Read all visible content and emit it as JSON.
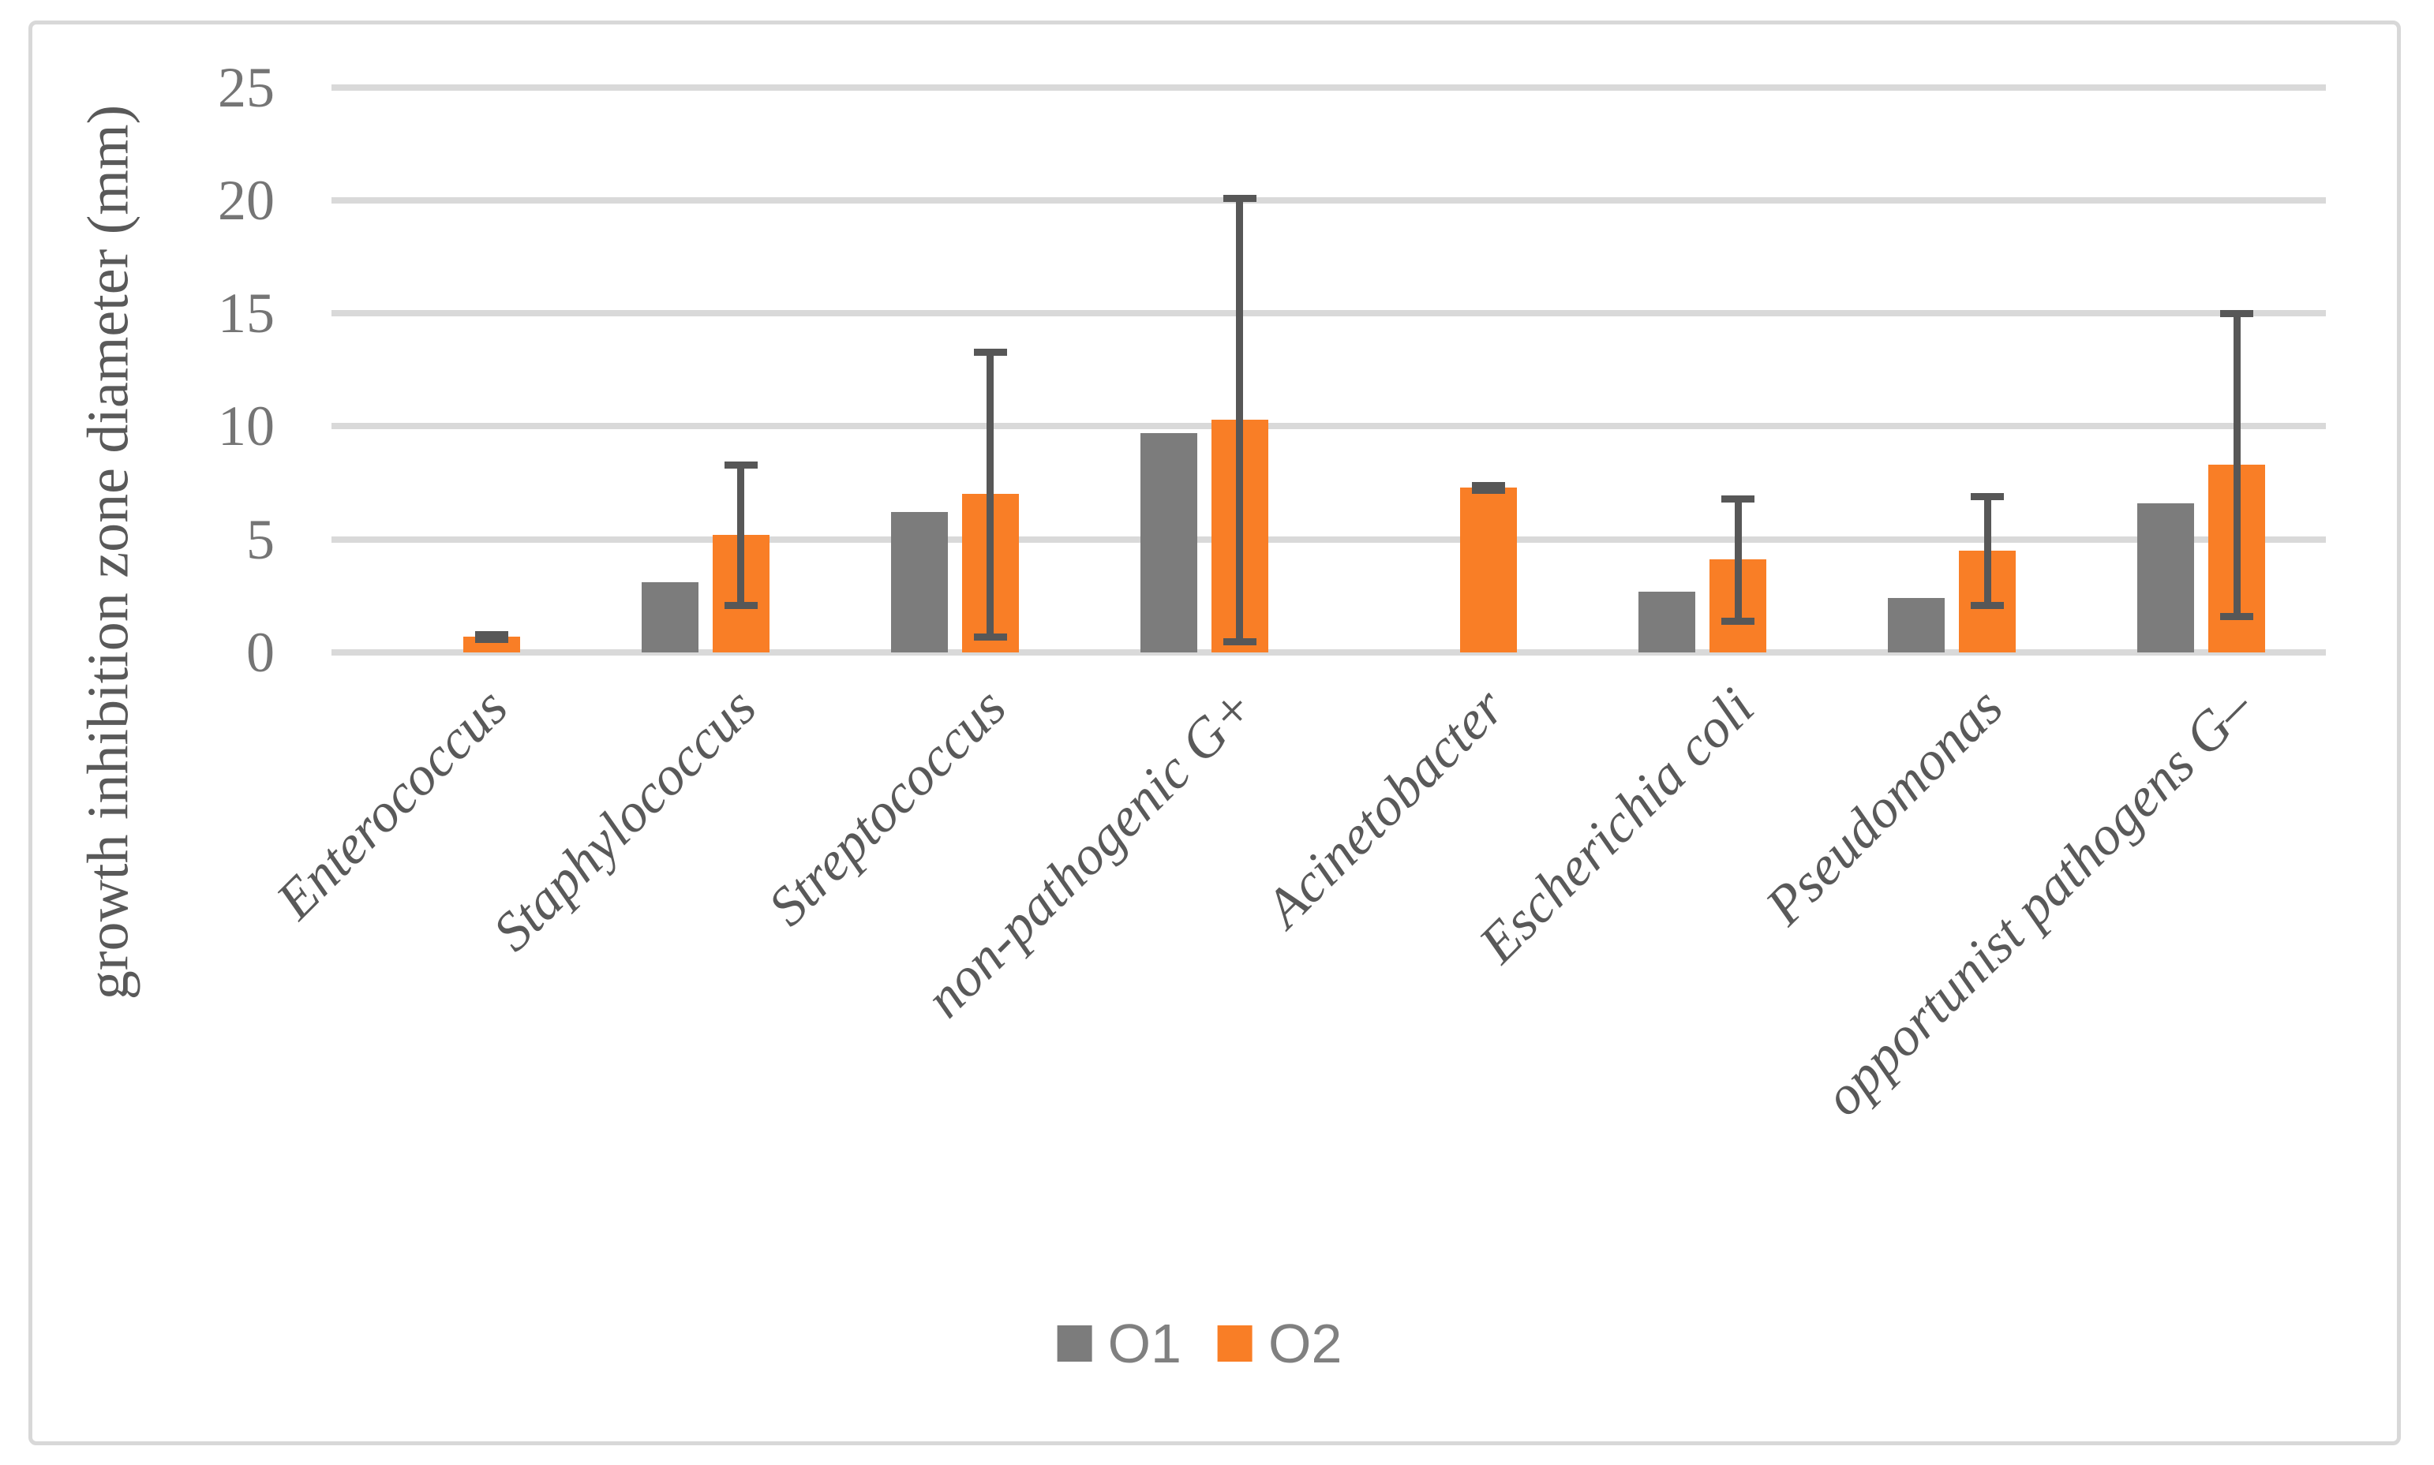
{
  "figure": {
    "border_color": "#d8d8d8",
    "background": "#ffffff"
  },
  "chart_data": {
    "type": "bar",
    "title": "",
    "xlabel": "",
    "ylabel": "growth inhibition zone diameter (mm)",
    "ylim": [
      0,
      25
    ],
    "yticks": [
      0,
      5,
      10,
      15,
      20,
      25
    ],
    "grid": true,
    "legend_position": "bottom-center",
    "categories": [
      "Enterococcus",
      "Staphylococcus",
      "Streptococcus",
      "non-pathogenic G+",
      "Acinetobacter",
      "Escherichia coli",
      "Pseudomonas",
      "opportunist pathogens G–"
    ],
    "series": [
      {
        "name": "O1",
        "color": "#7c7c7c",
        "values": [
          0,
          3.1,
          6.2,
          9.7,
          0,
          2.7,
          2.4,
          6.6
        ]
      },
      {
        "name": "O2",
        "color": "#f97e26",
        "values": [
          0.7,
          5.2,
          7.0,
          10.3,
          7.3,
          4.1,
          4.5,
          8.3
        ],
        "error_bars": {
          "color": "#575757",
          "low": [
            0.6,
            2.1,
            0.7,
            0.5,
            7.2,
            1.4,
            2.1,
            1.6
          ],
          "high": [
            0.8,
            8.3,
            13.3,
            20.1,
            7.4,
            6.8,
            6.9,
            15.0
          ]
        }
      }
    ]
  },
  "colors": {
    "gridline": "#d9d9d9",
    "tick_text": "#757575",
    "category_text": "#595959",
    "legend_text": "#808080"
  },
  "legend": {
    "items": [
      {
        "label": "O1",
        "color": "#7c7c7c"
      },
      {
        "label": "O2",
        "color": "#f97e26"
      }
    ]
  }
}
